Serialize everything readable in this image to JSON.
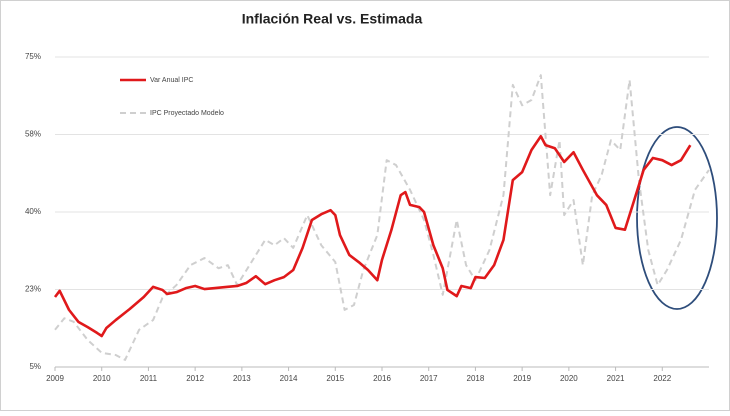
{
  "chart_data": {
    "type": "line",
    "title": "Inflación Real vs. Estimada",
    "xlim": [
      2009,
      2023
    ],
    "xticks": [
      2009,
      2010,
      2011,
      2012,
      2013,
      2014,
      2015,
      2016,
      2017,
      2018,
      2019,
      2020,
      2021,
      2022
    ],
    "ylim": [
      5,
      75
    ],
    "yticks": [
      {
        "value": 5,
        "label": "5%"
      },
      {
        "value": 22.5,
        "label": "23%"
      },
      {
        "value": 40,
        "label": "40%"
      },
      {
        "value": 57.5,
        "label": "58%"
      },
      {
        "value": 75,
        "label": "75%"
      }
    ],
    "grid": true,
    "series": [
      {
        "name": "Var Anual IPC",
        "color": "#e0191b",
        "dashed": false,
        "x": [
          2009.0,
          2009.1,
          2009.3,
          2009.5,
          2009.7,
          2009.9,
          2010.0,
          2010.1,
          2010.3,
          2010.6,
          2010.9,
          2011.1,
          2011.3,
          2011.4,
          2011.6,
          2011.8,
          2012.0,
          2012.2,
          2012.4,
          2012.7,
          2012.9,
          2013.1,
          2013.3,
          2013.5,
          2013.7,
          2013.9,
          2014.1,
          2014.3,
          2014.5,
          2014.7,
          2014.9,
          2015.0,
          2015.1,
          2015.3,
          2015.5,
          2015.7,
          2015.9,
          2016.0,
          2016.2,
          2016.4,
          2016.5,
          2016.6,
          2016.8,
          2016.9,
          2017.1,
          2017.3,
          2017.4,
          2017.6,
          2017.7,
          2017.9,
          2018.0,
          2018.2,
          2018.4,
          2018.6,
          2018.8,
          2019.0,
          2019.2,
          2019.4,
          2019.5,
          2019.7,
          2019.9,
          2020.1,
          2020.3,
          2020.6,
          2020.8,
          2021.0,
          2021.2,
          2021.4,
          2021.6,
          2021.8,
          2022.0,
          2022.2,
          2022.4,
          2022.6
        ],
        "values": [
          20.8,
          22.2,
          17.9,
          15.2,
          14,
          12.7,
          12,
          13.8,
          15.6,
          18.1,
          20.8,
          23.1,
          22.4,
          21.5,
          21.9,
          22.8,
          23.3,
          22.6,
          22.8,
          23.1,
          23.3,
          24,
          25.5,
          23.7,
          24.6,
          25.3,
          26.9,
          31.9,
          38.2,
          39.5,
          40.4,
          39.3,
          34.8,
          30.3,
          28.7,
          26.9,
          24.6,
          29.2,
          35.9,
          43.8,
          44.5,
          41.6,
          41.1,
          40,
          32.5,
          27.3,
          22.4,
          21,
          23.3,
          22.8,
          25.3,
          25.1,
          28,
          33.7,
          47.2,
          49,
          54,
          57.1,
          55.1,
          54.4,
          51.3,
          53.5,
          49.5,
          43.8,
          41.6,
          36.4,
          36,
          42.7,
          49.5,
          52.2,
          51.7,
          50.6,
          51.7,
          55.1
        ]
      },
      {
        "name": "IPC Proyectado Modelo",
        "color": "#cfcfcf",
        "dashed": true,
        "x": [
          2009.0,
          2009.2,
          2009.4,
          2009.7,
          2010.0,
          2010.3,
          2010.5,
          2010.8,
          2011.1,
          2011.3,
          2011.6,
          2011.9,
          2012.2,
          2012.5,
          2012.7,
          2012.9,
          2013.1,
          2013.3,
          2013.5,
          2013.7,
          2013.9,
          2014.1,
          2014.4,
          2014.7,
          2015.0,
          2015.2,
          2015.4,
          2015.6,
          2015.9,
          2016.1,
          2016.3,
          2016.6,
          2016.9,
          2017.1,
          2017.3,
          2017.6,
          2017.8,
          2018.0,
          2018.3,
          2018.6,
          2018.8,
          2019.0,
          2019.2,
          2019.4,
          2019.6,
          2019.8,
          2019.9,
          2020.1,
          2020.3,
          2020.5,
          2020.7,
          2020.9,
          2021.1,
          2021.3,
          2021.5,
          2021.7,
          2021.9,
          2022.1,
          2022.4,
          2022.7,
          2023.0
        ],
        "values": [
          13.4,
          16,
          15.2,
          11.1,
          8.2,
          7.7,
          6.6,
          13.4,
          15.6,
          20.6,
          23.5,
          28,
          29.6,
          27.3,
          28,
          23.5,
          26.9,
          30.3,
          33.7,
          32.5,
          34.1,
          31.9,
          39.3,
          32.5,
          28.7,
          17.9,
          19,
          26.9,
          34.8,
          51.7,
          50.6,
          45,
          38.2,
          30.3,
          21.3,
          38.2,
          28,
          24.6,
          31.4,
          43.8,
          68.7,
          64.1,
          65.3,
          70.9,
          43.8,
          56.2,
          39.3,
          42.7,
          28,
          43.8,
          48.3,
          56.2,
          54,
          69.8,
          47.2,
          31.4,
          23.5,
          26.9,
          33.7,
          45,
          49.5
        ]
      }
    ]
  }
}
